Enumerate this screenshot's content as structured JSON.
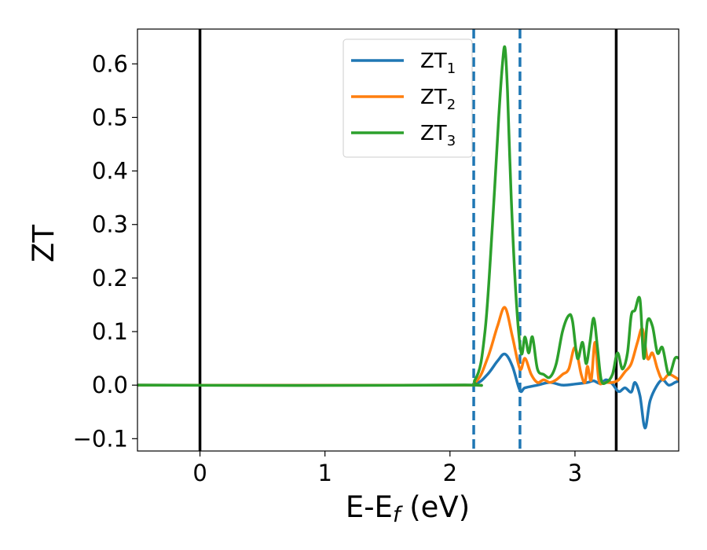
{
  "chart_data": {
    "type": "line",
    "xlabel_main": "E-E",
    "xlabel_sub": "f",
    "xlabel_unit": " (eV)",
    "ylabel": "ZT",
    "xlim": [
      -0.5,
      3.83
    ],
    "ylim": [
      -0.123,
      0.665
    ],
    "xticks": [
      0,
      1,
      2,
      3
    ],
    "xtick_labels": [
      "0",
      "1",
      "2",
      "3"
    ],
    "yticks": [
      -0.1,
      0.0,
      0.1,
      0.2,
      0.3,
      0.4,
      0.5,
      0.6
    ],
    "ytick_labels": [
      "−0.1",
      "0.0",
      "0.1",
      "0.2",
      "0.3",
      "0.4",
      "0.5",
      "0.6"
    ],
    "grid": false,
    "legend_position": "top-center",
    "vertical_lines": [
      {
        "x": 0.0,
        "style": "solid",
        "color": "#000000"
      },
      {
        "x": 3.33,
        "style": "solid",
        "color": "#000000"
      },
      {
        "x": 2.19,
        "style": "dashed",
        "color": "#1f77b4"
      },
      {
        "x": 2.56,
        "style": "dashed",
        "color": "#1f77b4"
      }
    ],
    "series": [
      {
        "name": "ZT",
        "subscript": "1",
        "color": "#1f77b4",
        "x": [
          -0.5,
          2.0,
          2.2,
          2.3,
          2.38,
          2.44,
          2.5,
          2.56,
          2.6,
          2.7,
          2.8,
          2.9,
          3.0,
          3.1,
          3.15,
          3.2,
          3.25,
          3.3,
          3.35,
          3.4,
          3.45,
          3.48,
          3.52,
          3.56,
          3.6,
          3.65,
          3.7,
          3.75,
          3.8,
          3.83
        ],
        "y": [
          0.0,
          0.0,
          0.002,
          0.02,
          0.045,
          0.058,
          0.035,
          -0.01,
          -0.005,
          0.0,
          0.005,
          0.0,
          0.002,
          0.005,
          0.008,
          0.003,
          0.01,
          0.002,
          -0.012,
          -0.005,
          -0.013,
          0.005,
          -0.02,
          -0.08,
          -0.03,
          -0.003,
          0.01,
          0.0,
          0.005,
          0.008
        ]
      },
      {
        "name": "ZT",
        "subscript": "2",
        "color": "#ff7f0e",
        "x": [
          -0.5,
          2.0,
          2.2,
          2.3,
          2.38,
          2.44,
          2.5,
          2.56,
          2.6,
          2.65,
          2.7,
          2.75,
          2.8,
          2.85,
          2.9,
          2.95,
          3.0,
          3.05,
          3.08,
          3.1,
          3.13,
          3.16,
          3.19,
          3.22,
          3.25,
          3.3,
          3.35,
          3.4,
          3.45,
          3.5,
          3.54,
          3.58,
          3.62,
          3.66,
          3.7,
          3.75,
          3.8,
          3.83
        ],
        "y": [
          0.0,
          0.0,
          0.005,
          0.05,
          0.11,
          0.145,
          0.09,
          0.03,
          0.05,
          0.02,
          0.005,
          0.01,
          0.005,
          0.01,
          0.02,
          0.03,
          0.07,
          0.02,
          0.005,
          0.035,
          0.01,
          0.08,
          0.01,
          0.003,
          0.005,
          0.005,
          0.01,
          0.025,
          0.04,
          0.08,
          0.105,
          0.05,
          0.06,
          0.03,
          0.01,
          0.02,
          0.015,
          0.01
        ]
      },
      {
        "name": "ZT",
        "subscript": "3",
        "color": "#2ca02c",
        "x": [
          -0.5,
          2.0,
          2.2,
          2.28,
          2.34,
          2.39,
          2.42,
          2.44,
          2.46,
          2.49,
          2.53,
          2.57,
          2.6,
          2.63,
          2.66,
          2.7,
          2.75,
          2.8,
          2.85,
          2.9,
          2.95,
          2.98,
          3.02,
          3.06,
          3.09,
          3.12,
          3.15,
          3.18,
          3.21,
          3.25,
          3.3,
          3.34,
          3.38,
          3.42,
          3.45,
          3.48,
          3.52,
          3.55,
          3.58,
          3.62,
          3.66,
          3.7,
          3.75,
          3.8,
          3.83
        ],
        "y": [
          0.0,
          0.0,
          0.01,
          0.1,
          0.3,
          0.5,
          0.6,
          0.63,
          0.55,
          0.35,
          0.16,
          0.06,
          0.09,
          0.06,
          0.09,
          0.03,
          0.02,
          0.015,
          0.04,
          0.1,
          0.13,
          0.12,
          0.05,
          0.08,
          0.04,
          0.08,
          0.125,
          0.07,
          0.01,
          0.005,
          0.02,
          0.06,
          0.03,
          0.06,
          0.13,
          0.14,
          0.16,
          0.05,
          0.12,
          0.11,
          0.06,
          0.07,
          0.02,
          0.05,
          0.05
        ]
      }
    ]
  }
}
